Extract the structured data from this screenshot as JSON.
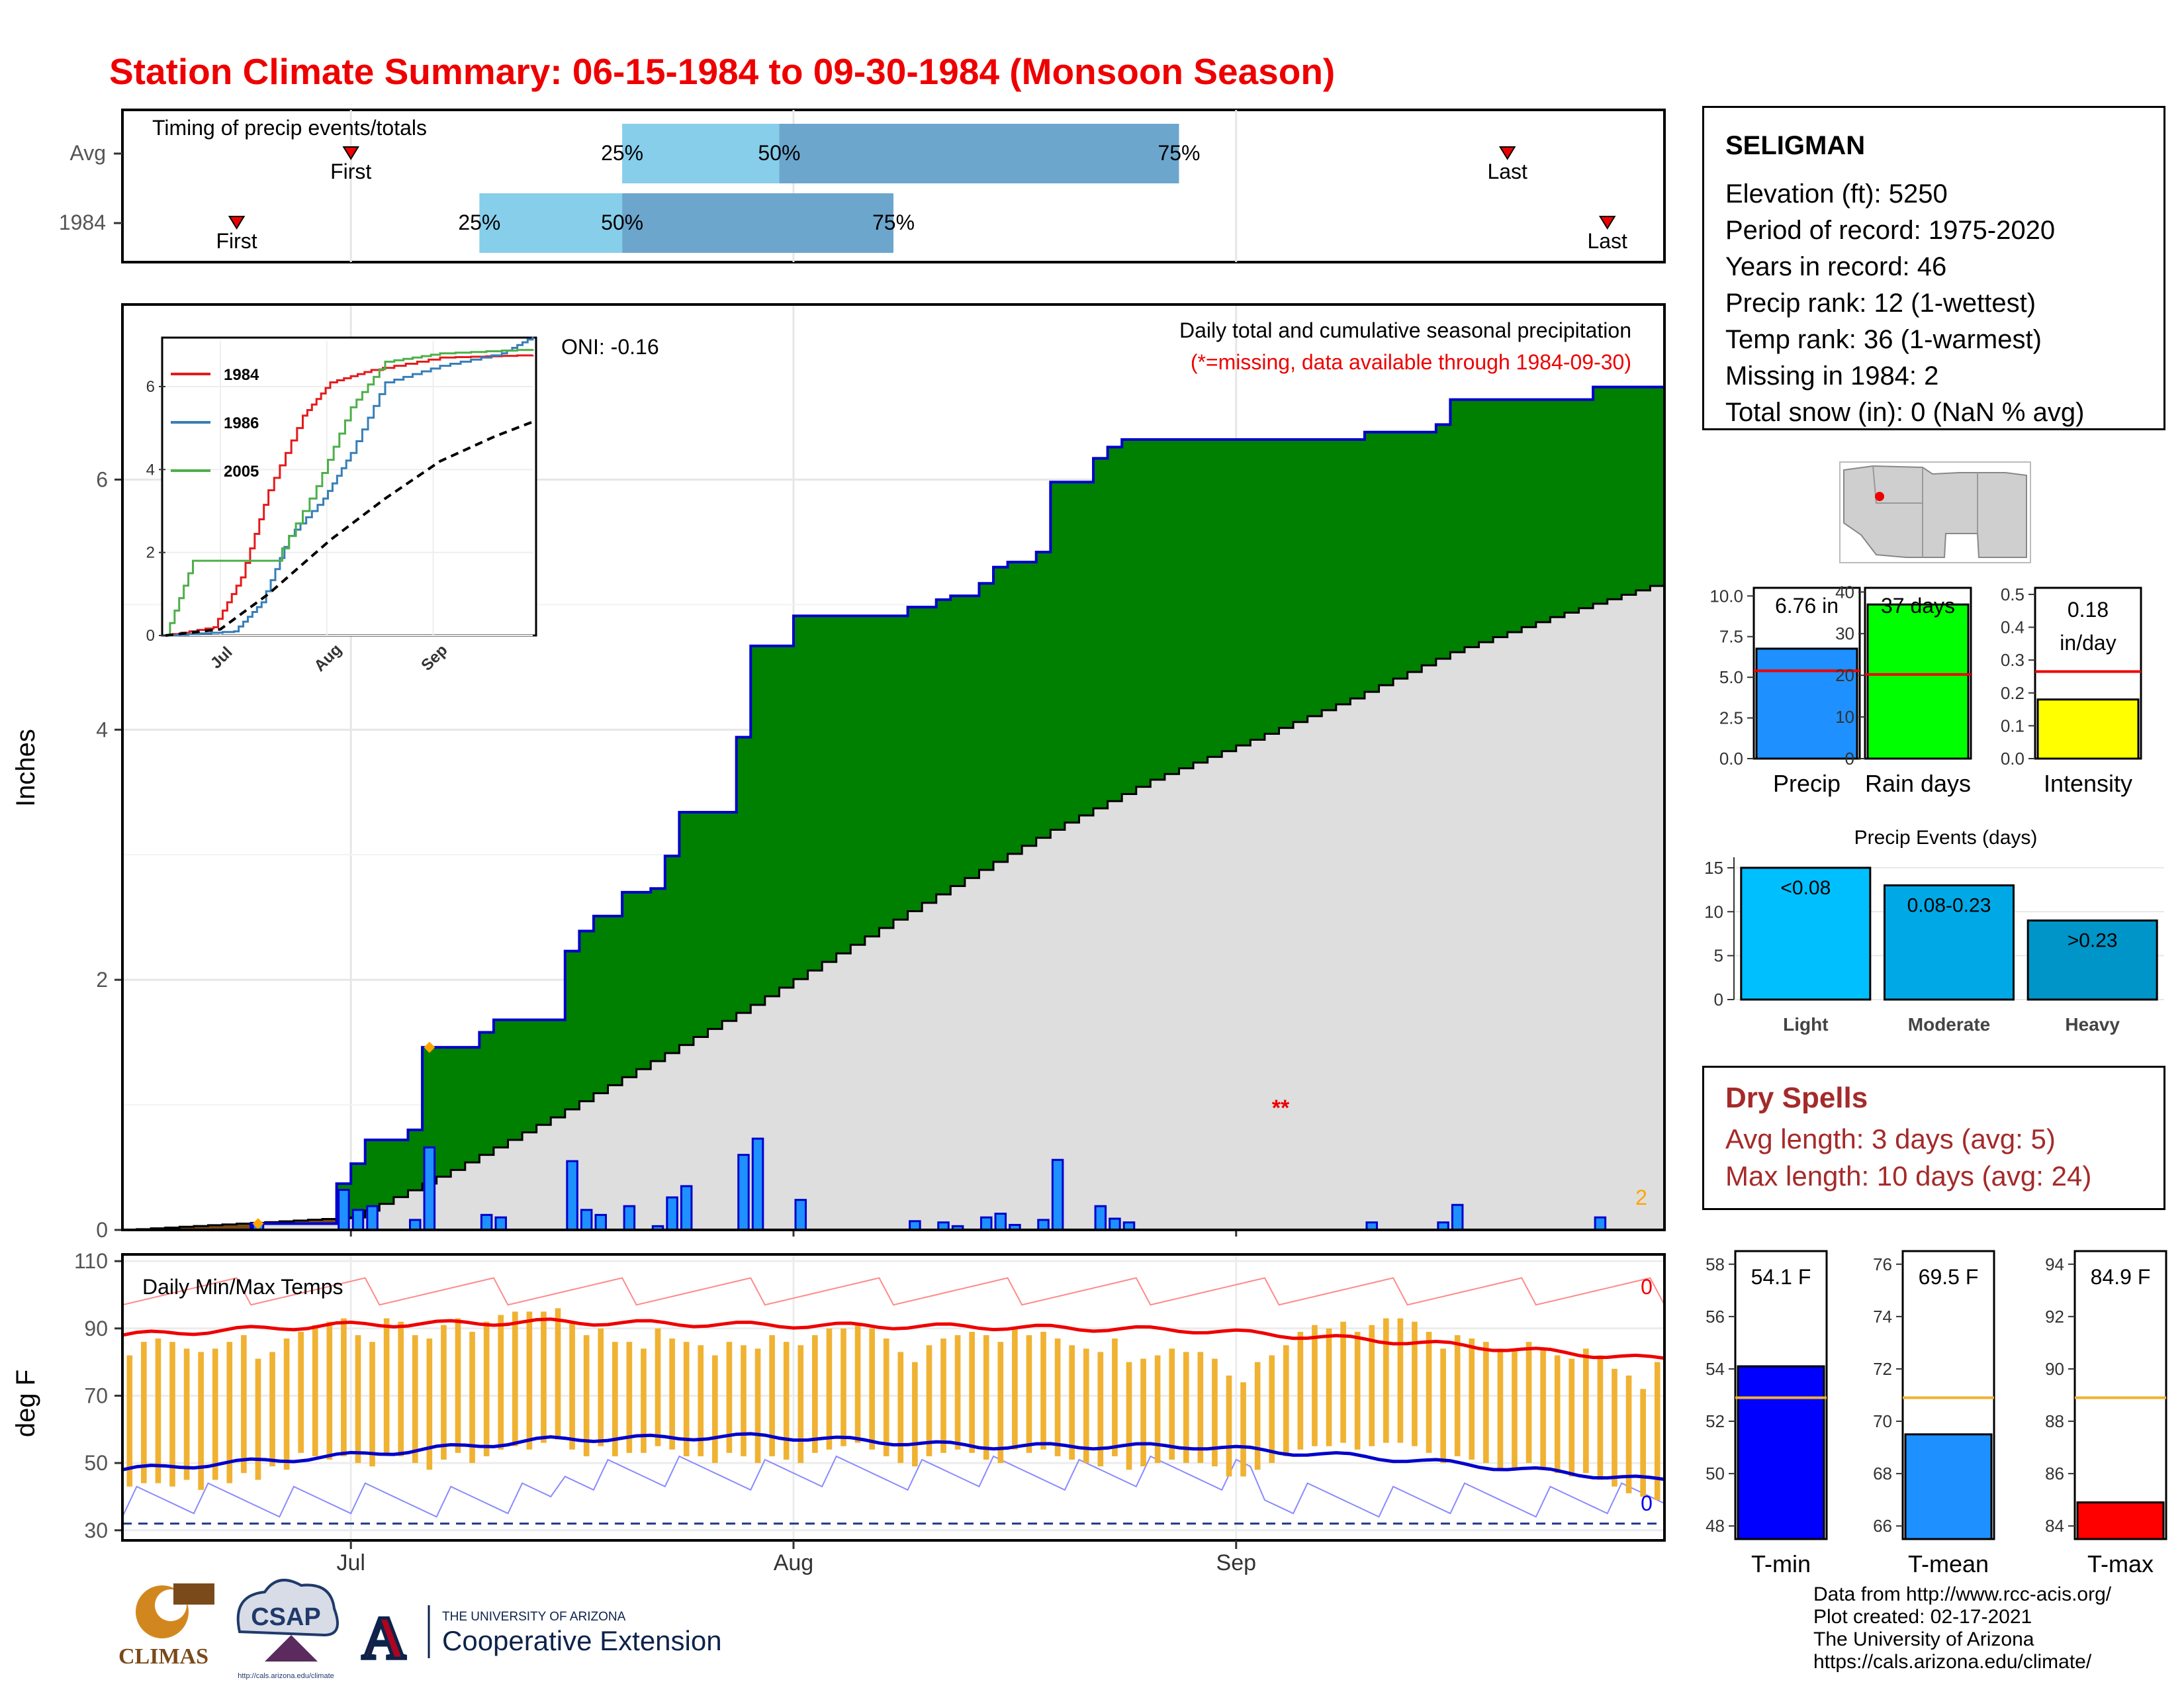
{
  "title": "Station Climate Summary: 06-15-1984 to 09-30-1984 (Monsoon Season)",
  "station": {
    "name": "SELIGMAN",
    "lines": [
      "Elevation (ft): 5250",
      "Period of record: 1975-2020",
      "Years in record: 46",
      "Precip rank: 12 (1-wettest)",
      "Temp rank: 36 (1-warmest)",
      "Missing in 1984: 2",
      "Total snow (in): 0 (NaN % avg)"
    ]
  },
  "timing_panel": {
    "label": "Timing of precip events/totals",
    "rows": [
      "Avg",
      "1984"
    ],
    "first_label": "First",
    "last_label": "Last",
    "avg": {
      "first": "07-01",
      "p25": "07-20",
      "p50": "07-31",
      "p75": "08-28",
      "last": "09-20"
    },
    "year": {
      "first": "06-23",
      "p25": "07-10",
      "p50": "07-20",
      "p75": "08-08",
      "last": "09-27"
    },
    "pct_labels": [
      "25%",
      "50%",
      "75%"
    ]
  },
  "main_panel": {
    "ylabel": "Inches",
    "oni": "ONI: -0.16",
    "subtitle": "Daily total and cumulative seasonal precipitation",
    "missing_note": "(*=missing, data available through 1984-09-30)",
    "missing_marker": "**",
    "missing_count": "2",
    "y_ticks": [
      "0",
      "2",
      "4",
      "6"
    ]
  },
  "inset": {
    "legend": [
      "1984",
      "1986",
      "2005"
    ],
    "colors": [
      "#e41a1c",
      "#377eb8",
      "#4daf4a"
    ],
    "y_ticks": [
      "0",
      "2",
      "4",
      "6"
    ],
    "x_ticks": [
      "Jul",
      "Aug",
      "Sep"
    ]
  },
  "temp_panel": {
    "label": "Daily Min/Max Temps",
    "ylabel": "deg F",
    "y_ticks": [
      "110",
      "90",
      "70",
      "50",
      "30"
    ],
    "x_ticks": [
      "Jul",
      "Aug",
      "Sep"
    ],
    "max_count": "0",
    "min_count": "0"
  },
  "mini_bars": [
    {
      "label": "Precip",
      "value_text": "6.76 in",
      "value": 6.76,
      "avg": 5.4,
      "ylim": [
        0,
        10.5
      ],
      "ticks": [
        "10.0",
        "7.5",
        "5.0",
        "2.5",
        "0.0"
      ],
      "color": "#1e90ff"
    },
    {
      "label": "Rain days",
      "value_text": "37 days",
      "value": 37,
      "avg": 20.2,
      "ylim": [
        0,
        41
      ],
      "ticks": [
        "40",
        "30",
        "20",
        "10",
        "0"
      ],
      "color": "#00ff00"
    },
    {
      "label": "Intensity",
      "value_text": "0.18 in/day",
      "value_lines": [
        "0.18",
        "in/day"
      ],
      "value": 0.18,
      "avg": 0.265,
      "ylim": [
        0,
        0.52
      ],
      "ticks": [
        "0.5",
        "0.4",
        "0.3",
        "0.2",
        "0.1",
        "0.0"
      ],
      "color": "#ffff00"
    }
  ],
  "events": {
    "title": "Precip Events (days)",
    "ticks": [
      "15",
      "10",
      "5",
      "0"
    ],
    "bars": [
      {
        "label": "Light",
        "value_label": "<0.08",
        "value": 15,
        "color": "#00bfff"
      },
      {
        "label": "Moderate",
        "value_label": "0.08-0.23",
        "value": 13,
        "color": "#00a9e6"
      },
      {
        "label": "Heavy",
        "value_label": ">0.23",
        "value": 9,
        "color": "#0095c8"
      }
    ]
  },
  "dry_spells": {
    "title": "Dry Spells",
    "avg": "Avg length: 3 days (avg: 5)",
    "max": "Max length: 10 days (avg: 24)"
  },
  "temp_bars": [
    {
      "label": "T-min",
      "value_text": "54.1 F",
      "value": 54.1,
      "avg": 52.9,
      "ylim": [
        47.5,
        58.5
      ],
      "ticks": [
        "58",
        "56",
        "54",
        "52",
        "50",
        "48"
      ],
      "color": "#0000ff"
    },
    {
      "label": "T-mean",
      "value_text": "69.5 F",
      "value": 69.5,
      "avg": 70.9,
      "ylim": [
        65.5,
        76.5
      ],
      "ticks": [
        "76",
        "74",
        "72",
        "70",
        "68",
        "66"
      ],
      "color": "#1e90ff"
    },
    {
      "label": "T-max",
      "value_text": "84.9 F",
      "value": 84.9,
      "avg": 88.9,
      "ylim": [
        83.5,
        94.5
      ],
      "ticks": [
        "94",
        "92",
        "90",
        "88",
        "86",
        "84"
      ],
      "color": "#ff0000"
    }
  ],
  "credits": [
    "Data from http://www.rcc-acis.org/",
    "Plot created: 02-17-2021",
    "The University of Arizona",
    "https://cals.arizona.edu/climate/"
  ],
  "logos": {
    "climas": "CLIMAS",
    "csap": "CSAP",
    "csap_url": "http://cals.arizona.edu/climate",
    "ua_small": "THE UNIVERSITY OF ARIZONA",
    "ua_big": "Cooperative Extension",
    "ua_letter": "A"
  },
  "chart_data": [
    {
      "type": "area",
      "name": "cumulative_precip",
      "x_start": "1984-06-15",
      "x_end": "1984-09-30",
      "x_ticks": [
        "Jul",
        "Aug",
        "Sep"
      ],
      "ylabel": "Inches",
      "ylim": [
        0,
        7.4
      ],
      "daily_precip": [
        {
          "date": "1984-06-24",
          "value": 0.05
        },
        {
          "date": "1984-06-30",
          "value": 0.32
        },
        {
          "date": "1984-07-01",
          "value": 0.16
        },
        {
          "date": "1984-07-02",
          "value": 0.19
        },
        {
          "date": "1984-07-05",
          "value": 0.08
        },
        {
          "date": "1984-07-06",
          "value": 0.66
        },
        {
          "date": "1984-07-10",
          "value": 0.12
        },
        {
          "date": "1984-07-11",
          "value": 0.1
        },
        {
          "date": "1984-07-16",
          "value": 0.55
        },
        {
          "date": "1984-07-17",
          "value": 0.16
        },
        {
          "date": "1984-07-18",
          "value": 0.12
        },
        {
          "date": "1984-07-20",
          "value": 0.19
        },
        {
          "date": "1984-07-22",
          "value": 0.03
        },
        {
          "date": "1984-07-23",
          "value": 0.26
        },
        {
          "date": "1984-07-24",
          "value": 0.35
        },
        {
          "date": "1984-07-28",
          "value": 0.6
        },
        {
          "date": "1984-07-29",
          "value": 0.73
        },
        {
          "date": "1984-08-01",
          "value": 0.24
        },
        {
          "date": "1984-08-09",
          "value": 0.07
        },
        {
          "date": "1984-08-11",
          "value": 0.06
        },
        {
          "date": "1984-08-12",
          "value": 0.03
        },
        {
          "date": "1984-08-14",
          "value": 0.1
        },
        {
          "date": "1984-08-15",
          "value": 0.13
        },
        {
          "date": "1984-08-16",
          "value": 0.04
        },
        {
          "date": "1984-08-18",
          "value": 0.08
        },
        {
          "date": "1984-08-19",
          "value": 0.56
        },
        {
          "date": "1984-08-22",
          "value": 0.19
        },
        {
          "date": "1984-08-23",
          "value": 0.09
        },
        {
          "date": "1984-08-24",
          "value": 0.06
        },
        {
          "date": "1984-09-10",
          "value": 0.06
        },
        {
          "date": "1984-09-15",
          "value": 0.06
        },
        {
          "date": "1984-09-16",
          "value": 0.2
        },
        {
          "date": "1984-09-26",
          "value": 0.1
        }
      ],
      "avg_cumulative": [
        {
          "date": "1984-06-15",
          "value": 0
        },
        {
          "date": "1984-07-01",
          "value": 0.1
        },
        {
          "date": "1984-07-08",
          "value": 0.48
        },
        {
          "date": "1984-07-15",
          "value": 0.9
        },
        {
          "date": "1984-07-22",
          "value": 1.35
        },
        {
          "date": "1984-07-29",
          "value": 1.8
        },
        {
          "date": "1984-08-05",
          "value": 2.28
        },
        {
          "date": "1984-08-12",
          "value": 2.75
        },
        {
          "date": "1984-08-19",
          "value": 3.2
        },
        {
          "date": "1984-08-26",
          "value": 3.6
        },
        {
          "date": "1984-09-02",
          "value": 3.92
        },
        {
          "date": "1984-09-09",
          "value": 4.25
        },
        {
          "date": "1984-09-16",
          "value": 4.62
        },
        {
          "date": "1984-09-23",
          "value": 4.9
        },
        {
          "date": "1984-09-30",
          "value": 5.15
        }
      ],
      "missing_days": [
        "1984-06-24",
        "1984-07-06"
      ]
    },
    {
      "type": "line",
      "name": "inset_cumulative",
      "x_ticks": [
        "Jul",
        "Aug",
        "Sep"
      ],
      "series": [
        {
          "name": "1984",
          "points": [
            [
              0,
              0
            ],
            [
              14,
              0.2
            ],
            [
              22,
              1.4
            ],
            [
              30,
              3.5
            ],
            [
              40,
              5.3
            ],
            [
              48,
              6.1
            ],
            [
              60,
              6.4
            ],
            [
              80,
              6.7
            ],
            [
              107,
              6.76
            ]
          ]
        },
        {
          "name": "1986",
          "points": [
            [
              0,
              0
            ],
            [
              20,
              0.1
            ],
            [
              28,
              0.8
            ],
            [
              36,
              2.4
            ],
            [
              46,
              3.3
            ],
            [
              54,
              4.4
            ],
            [
              64,
              6.1
            ],
            [
              80,
              6.5
            ],
            [
              98,
              6.8
            ],
            [
              107,
              7.2
            ]
          ]
        },
        {
          "name": "2005",
          "points": [
            [
              0,
              0
            ],
            [
              8,
              1.8
            ],
            [
              16,
              1.8
            ],
            [
              32,
              1.8
            ],
            [
              44,
              3.6
            ],
            [
              54,
              5.5
            ],
            [
              64,
              6.6
            ],
            [
              80,
              6.8
            ],
            [
              107,
              6.9
            ]
          ]
        },
        {
          "name": "avg",
          "points": [
            [
              0,
              0
            ],
            [
              16,
              0.15
            ],
            [
              30,
              1.0
            ],
            [
              48,
              2.3
            ],
            [
              64,
              3.3
            ],
            [
              80,
              4.2
            ],
            [
              96,
              4.8
            ],
            [
              107,
              5.15
            ]
          ]
        }
      ]
    },
    {
      "type": "line",
      "name": "daily_temps",
      "ylabel": "deg F",
      "ylim": [
        27,
        112
      ],
      "x_ticks": [
        "Jul",
        "Aug",
        "Sep"
      ],
      "avg_max_knots": [
        [
          0,
          88
        ],
        [
          15,
          91
        ],
        [
          30,
          92
        ],
        [
          45,
          91
        ],
        [
          60,
          90.5
        ],
        [
          75,
          89.5
        ],
        [
          90,
          86
        ],
        [
          107,
          81
        ]
      ],
      "avg_min_knots": [
        [
          0,
          48
        ],
        [
          15,
          52
        ],
        [
          30,
          57
        ],
        [
          45,
          58
        ],
        [
          60,
          55
        ],
        [
          75,
          55
        ],
        [
          90,
          51
        ],
        [
          107,
          45
        ]
      ],
      "record_max": 100,
      "record_min": 36,
      "daily_max": [
        82,
        86,
        87,
        86,
        84,
        83,
        84,
        86,
        88,
        81,
        83,
        87,
        89,
        91,
        92,
        93,
        88,
        86,
        93,
        92,
        88,
        87,
        91,
        93,
        89,
        92,
        94,
        95,
        95,
        95,
        96,
        92,
        88,
        90,
        86,
        86,
        84,
        90,
        87,
        86,
        85,
        82,
        86,
        85,
        84,
        88,
        86,
        85,
        88,
        90,
        90,
        91,
        90,
        87,
        83,
        80,
        85,
        87,
        88,
        89,
        88,
        86,
        90,
        88,
        89,
        87,
        85,
        84,
        83,
        87,
        80,
        81,
        82,
        84,
        83,
        83,
        81,
        76,
        74,
        80,
        82,
        85,
        89,
        91,
        90,
        92,
        89,
        91,
        93,
        93,
        92,
        89,
        84,
        88,
        87,
        86,
        84,
        84,
        86,
        84,
        82,
        81,
        84,
        82,
        78,
        76,
        72,
        80
      ],
      "daily_min": [
        43,
        44,
        44,
        43,
        45,
        42,
        45,
        44,
        47,
        45,
        49,
        48,
        53,
        52,
        51,
        52,
        50,
        49,
        53,
        52,
        50,
        48,
        51,
        53,
        50,
        52,
        54,
        55,
        54,
        56,
        57,
        54,
        52,
        55,
        52,
        53,
        53,
        55,
        54,
        52,
        52,
        50,
        53,
        52,
        50,
        52,
        51,
        50,
        53,
        54,
        55,
        56,
        54,
        52,
        50,
        49,
        52,
        53,
        54,
        53,
        51,
        50,
        54,
        53,
        54,
        52,
        51,
        50,
        49,
        52,
        48,
        49,
        50,
        51,
        50,
        50,
        49,
        46,
        46,
        48,
        50,
        52,
        54,
        55,
        55,
        56,
        54,
        55,
        56,
        56,
        55,
        53,
        50,
        52,
        51,
        50,
        48,
        48,
        50,
        48,
        47,
        46,
        47,
        45,
        43,
        41,
        40,
        39
      ]
    },
    {
      "type": "bar",
      "name": "precip_summary",
      "categories": [
        "Precip",
        "Rain days",
        "Intensity"
      ],
      "values": [
        6.76,
        37,
        0.18
      ]
    },
    {
      "type": "bar",
      "name": "precip_events",
      "categories": [
        "Light",
        "Moderate",
        "Heavy"
      ],
      "values": [
        15,
        13,
        9
      ]
    },
    {
      "type": "bar",
      "name": "temp_summary",
      "categories": [
        "T-min",
        "T-mean",
        "T-max"
      ],
      "values": [
        54.1,
        69.5,
        84.9
      ]
    }
  ]
}
